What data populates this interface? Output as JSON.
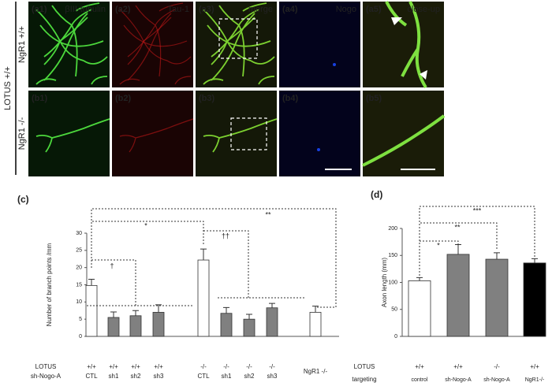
{
  "figure": {
    "row_group": "LOTUS +/+",
    "rows": [
      "NgR1 +/+",
      "NgR1 -/-"
    ],
    "panels": [
      [
        "(a1)",
        "(a2)",
        "(a3)",
        "(a4)",
        "(a5)"
      ],
      [
        "(b1)",
        "(b2)",
        "(b3)",
        "(b4)",
        "(b5)"
      ]
    ],
    "captions": [
      "βIII-tubulin",
      "Tau-1",
      "merge",
      "Nogo",
      "close-up"
    ]
  },
  "chart_data": [
    {
      "type": "bar",
      "panel_label": "(c)",
      "y_label": "Number of branch points /mm",
      "row_labels": [
        "LOTUS",
        "sh-Nogo-A"
      ],
      "categories": [
        "+/+",
        "+/+",
        "+/+",
        "+/+",
        "-/-",
        "-/-",
        "-/-",
        "-/-",
        "NgR1 -/-"
      ],
      "sub_categories": [
        "CTL",
        "sh1",
        "sh2",
        "sh3",
        "CTL",
        "sh1",
        "sh2",
        "sh3",
        null
      ],
      "values": [
        14.8,
        5.5,
        6.0,
        7.0,
        22.2,
        6.7,
        5.0,
        8.3,
        7.0
      ],
      "errors": [
        1.8,
        1.6,
        1.5,
        2.2,
        3.2,
        1.7,
        1.4,
        1.3,
        1.8
      ],
      "colors": [
        "#ffffff",
        "#808080",
        "#808080",
        "#808080",
        "#ffffff",
        "#808080",
        "#808080",
        "#808080",
        "#ffffff"
      ],
      "ylim": [
        0,
        30
      ],
      "yticks": [
        0,
        5,
        10,
        15,
        20,
        25,
        30
      ],
      "annotations": [
        "**",
        "*",
        "†",
        "††"
      ]
    },
    {
      "type": "bar",
      "panel_label": "(d)",
      "y_label": "Axon length (mm)",
      "row_labels": [
        "LOTUS",
        "targeting"
      ],
      "categories": [
        "+/+",
        "+/+",
        "-/-",
        "+/+"
      ],
      "sub_categories": [
        "control",
        "sh-Nogo-A",
        "sh-Nogo-A",
        "NgR1-/-"
      ],
      "values": [
        103,
        152,
        143,
        136
      ],
      "errors": [
        6,
        18,
        12,
        8
      ],
      "colors": [
        "#ffffff",
        "#808080",
        "#808080",
        "#000000"
      ],
      "ylim": [
        0,
        200
      ],
      "yticks": [
        0,
        50,
        100,
        150,
        200
      ],
      "annotations": [
        "***",
        "**",
        "*"
      ]
    }
  ]
}
